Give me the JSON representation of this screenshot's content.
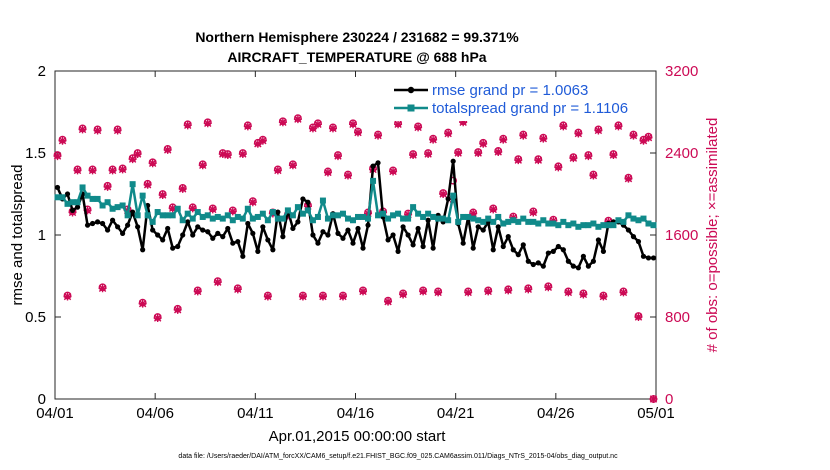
{
  "chart_data": {
    "type": "line",
    "title_line1": "Northern Hemisphere 230224 / 231682 = 99.371%",
    "title_line2": "AIRCRAFT_TEMPERATURE @ 688 hPa",
    "xlabel": "Apr.01,2015 00:00:00 start",
    "ylabel_left": "rmse and totalspread",
    "ylabel_right": "# of obs: o=possible; ×=assimilated",
    "footer": "data file: /Users/raeder/DAI/ATM_forcXX/CAM6_setup/f.e21.FHIST_BGC.f09_025.CAM6assim.011/Diags_NTrS_2015-04/obs_diag_output.nc",
    "xlim": [
      0,
      30
    ],
    "ylim_left": [
      0,
      2
    ],
    "ylim_right": [
      0,
      3200
    ],
    "x_ticks": [
      0,
      5,
      10,
      15,
      20,
      25,
      30
    ],
    "x_tick_labels": [
      "04/01",
      "04/06",
      "04/11",
      "04/16",
      "04/21",
      "04/26",
      "05/01"
    ],
    "y_ticks_left": [
      0,
      0.5,
      1,
      1.5,
      2
    ],
    "y_tick_labels_left": [
      "0",
      "0.5",
      "1",
      "1.5",
      "2"
    ],
    "y_ticks_right": [
      0,
      800,
      1600,
      2400,
      3200
    ],
    "y_tick_labels_right": [
      "0",
      "800",
      "1600",
      "2400",
      "3200"
    ],
    "series": [
      {
        "name": "rmse grand pr = 1.0063",
        "color": "#000000",
        "x": [
          0.125,
          0.375,
          0.625,
          0.875,
          1.125,
          1.375,
          1.625,
          1.875,
          2.125,
          2.375,
          2.625,
          2.875,
          3.125,
          3.375,
          3.625,
          3.875,
          4.125,
          4.375,
          4.625,
          4.875,
          5.125,
          5.375,
          5.625,
          5.875,
          6.125,
          6.375,
          6.625,
          6.875,
          7.125,
          7.375,
          7.625,
          7.875,
          8.125,
          8.375,
          8.625,
          8.875,
          9.125,
          9.375,
          9.625,
          9.875,
          10.125,
          10.375,
          10.625,
          10.875,
          11.125,
          11.375,
          11.625,
          11.875,
          12.125,
          12.375,
          12.625,
          12.875,
          13.125,
          13.375,
          13.625,
          13.875,
          14.125,
          14.375,
          14.625,
          14.875,
          15.125,
          15.375,
          15.625,
          15.875,
          16.125,
          16.375,
          16.625,
          16.875,
          17.125,
          17.375,
          17.625,
          17.875,
          18.125,
          18.375,
          18.625,
          18.875,
          19.125,
          19.375,
          19.625,
          19.875,
          20.125,
          20.375,
          20.625,
          20.875,
          21.125,
          21.375,
          21.625,
          21.875,
          22.125,
          22.375,
          22.625,
          22.875,
          23.125,
          23.375,
          23.625,
          23.875,
          24.125,
          24.375,
          24.625,
          24.875,
          25.125,
          25.375,
          25.625,
          25.875,
          26.125,
          26.375,
          26.625,
          26.875,
          27.125,
          27.375,
          27.625,
          27.875,
          28.125,
          28.375,
          28.625,
          28.875,
          29.125,
          29.375,
          29.625,
          29.875
        ],
        "values": [
          1.29,
          1.22,
          1.25,
          1.15,
          1.17,
          1.25,
          1.06,
          1.07,
          1.08,
          1.07,
          1.03,
          1.09,
          1.05,
          1.01,
          1.06,
          1.14,
          1.05,
          0.91,
          1.18,
          1.03,
          1.0,
          0.97,
          1.04,
          0.92,
          0.93,
          1.0,
          1.08,
          1.0,
          1.05,
          1.03,
          1.02,
          0.98,
          1.01,
          0.99,
          1.04,
          0.95,
          0.96,
          0.87,
          1.07,
          1.01,
          0.9,
          1.05,
          0.97,
          0.91,
          1.14,
          0.99,
          1.15,
          1.04,
          1.08,
          1.22,
          1.2,
          1.0,
          0.95,
          1.02,
          1.0,
          1.13,
          1.01,
          0.98,
          1.03,
          0.95,
          1.04,
          0.92,
          1.06,
          1.42,
          1.44,
          1.11,
          0.97,
          1.0,
          0.9,
          1.05,
          1.0,
          0.94,
          1.04,
          0.93,
          1.09,
          0.92,
          1.12,
          1.08,
          1.22,
          1.45,
          1.07,
          0.95,
          1.11,
          0.92,
          1.05,
          1.03,
          1.08,
          0.91,
          1.05,
          0.93,
          0.99,
          0.91,
          0.88,
          0.94,
          0.84,
          0.82,
          0.83,
          0.81,
          0.89,
          0.9,
          0.93,
          0.91,
          0.84,
          0.81,
          0.8,
          0.87,
          0.81,
          0.84,
          0.97,
          0.9,
          1.07,
          1.08,
          1.08,
          1.06,
          1.03,
          0.99,
          0.96,
          0.87,
          0.86,
          0.86
        ]
      },
      {
        "name": "totalspread grand pr = 1.1106",
        "color": "#108a8a",
        "x": [
          0.125,
          0.375,
          0.625,
          0.875,
          1.125,
          1.375,
          1.625,
          1.875,
          2.125,
          2.375,
          2.625,
          2.875,
          3.125,
          3.375,
          3.625,
          3.875,
          4.125,
          4.375,
          4.625,
          4.875,
          5.125,
          5.375,
          5.625,
          5.875,
          6.125,
          6.375,
          6.625,
          6.875,
          7.125,
          7.375,
          7.625,
          7.875,
          8.125,
          8.375,
          8.625,
          8.875,
          9.125,
          9.375,
          9.625,
          9.875,
          10.125,
          10.375,
          10.625,
          10.875,
          11.125,
          11.375,
          11.625,
          11.875,
          12.125,
          12.375,
          12.625,
          12.875,
          13.125,
          13.375,
          13.625,
          13.875,
          14.125,
          14.375,
          14.625,
          14.875,
          15.125,
          15.375,
          15.625,
          15.875,
          16.125,
          16.375,
          16.625,
          16.875,
          17.125,
          17.375,
          17.625,
          17.875,
          18.125,
          18.375,
          18.625,
          18.875,
          19.125,
          19.375,
          19.625,
          19.875,
          20.125,
          20.375,
          20.625,
          20.875,
          21.125,
          21.375,
          21.625,
          21.875,
          22.125,
          22.375,
          22.625,
          22.875,
          23.125,
          23.375,
          23.625,
          23.875,
          24.125,
          24.375,
          24.625,
          24.875,
          25.125,
          25.375,
          25.625,
          25.875,
          26.125,
          26.375,
          26.625,
          26.875,
          27.125,
          27.375,
          27.625,
          27.875,
          28.125,
          28.375,
          28.625,
          28.875,
          29.125,
          29.375,
          29.625,
          29.875
        ],
        "values": [
          1.23,
          1.23,
          1.19,
          1.2,
          1.2,
          1.29,
          1.24,
          1.22,
          1.22,
          1.18,
          1.2,
          1.16,
          1.17,
          1.18,
          1.12,
          1.31,
          1.12,
          1.24,
          1.12,
          1.08,
          1.14,
          1.12,
          1.12,
          1.12,
          1.16,
          1.09,
          1.13,
          1.1,
          1.14,
          1.11,
          1.12,
          1.1,
          1.11,
          1.1,
          1.12,
          1.09,
          1.11,
          1.1,
          1.16,
          1.1,
          1.11,
          1.13,
          1.09,
          1.14,
          1.1,
          1.1,
          1.15,
          1.12,
          1.17,
          1.13,
          1.15,
          1.09,
          1.11,
          1.21,
          1.1,
          1.12,
          1.12,
          1.13,
          1.1,
          1.09,
          1.11,
          1.11,
          1.1,
          1.33,
          1.12,
          1.13,
          1.1,
          1.12,
          1.13,
          1.1,
          1.1,
          1.17,
          1.13,
          1.11,
          1.13,
          1.11,
          1.1,
          1.1,
          1.09,
          1.24,
          1.08,
          1.11,
          1.11,
          1.1,
          1.09,
          1.08,
          1.1,
          1.08,
          1.11,
          1.07,
          1.08,
          1.09,
          1.08,
          1.1,
          1.08,
          1.08,
          1.07,
          1.09,
          1.07,
          1.07,
          1.06,
          1.08,
          1.06,
          1.07,
          1.05,
          1.06,
          1.06,
          1.07,
          1.05,
          1.06,
          1.06,
          1.06,
          1.09,
          1.08,
          1.12,
          1.1,
          1.09,
          1.1,
          1.07,
          1.06
        ]
      }
    ],
    "obs_points": {
      "name": "# of obs",
      "color": "#cc0a55",
      "x": [
        0.125,
        0.375,
        0.625,
        0.875,
        1.125,
        1.375,
        1.625,
        1.875,
        2.125,
        2.375,
        2.625,
        2.875,
        3.125,
        3.375,
        3.625,
        3.875,
        4.125,
        4.375,
        4.625,
        4.875,
        5.125,
        5.375,
        5.625,
        5.875,
        6.125,
        6.375,
        6.625,
        6.875,
        7.125,
        7.375,
        7.625,
        7.875,
        8.125,
        8.375,
        8.625,
        8.875,
        9.125,
        9.375,
        9.625,
        9.875,
        10.125,
        10.375,
        10.625,
        10.875,
        11.125,
        11.375,
        11.625,
        11.875,
        12.125,
        12.375,
        12.625,
        12.875,
        13.125,
        13.375,
        13.625,
        13.875,
        14.125,
        14.375,
        14.625,
        14.875,
        15.125,
        15.375,
        15.625,
        15.875,
        16.125,
        16.375,
        16.625,
        16.875,
        17.125,
        17.375,
        17.625,
        17.875,
        18.125,
        18.375,
        18.625,
        18.875,
        19.125,
        19.375,
        19.625,
        19.875,
        20.125,
        20.375,
        20.625,
        20.875,
        21.125,
        21.375,
        21.625,
        21.875,
        22.125,
        22.375,
        22.625,
        22.875,
        23.125,
        23.375,
        23.625,
        23.875,
        24.125,
        24.375,
        24.625,
        24.875,
        25.125,
        25.375,
        25.625,
        25.875,
        26.125,
        26.375,
        26.625,
        26.875,
        27.125,
        27.375,
        27.625,
        27.875,
        28.125,
        28.375,
        28.625,
        28.875,
        29.125,
        29.375,
        29.625,
        29.875
      ],
      "assimilated": [
        2370,
        2520,
        1000,
        1820,
        2230,
        2630,
        1840,
        2230,
        2620,
        1080,
        2070,
        2230,
        2620,
        2240,
        1840,
        2340,
        2390,
        930,
        2090,
        2300,
        790,
        1990,
        2430,
        1860,
        870,
        2050,
        2670,
        1860,
        1050,
        2280,
        2690,
        1850,
        1140,
        2390,
        2380,
        1830,
        1070,
        2390,
        2660,
        1920,
        2490,
        2520,
        1000,
        1810,
        2230,
        2700,
        1790,
        2280,
        2730,
        1000,
        1880,
        2640,
        2680,
        1000,
        2210,
        2640,
        2370,
        1000,
        2180,
        2680,
        2600,
        1050,
        1810,
        2240,
        2570,
        1820,
        950,
        2220,
        2680,
        1020,
        1800,
        2380,
        2650,
        1050,
        2390,
        2530,
        1040,
        2000,
        2590,
        1950,
        2400,
        2700,
        1040,
        1810,
        2400,
        2490,
        1050,
        1850,
        2410,
        2530,
        1060,
        1770,
        2330,
        2570,
        1070,
        1820,
        2330,
        2540,
        1090,
        1740,
        2260,
        2660,
        1040,
        2350,
        2590,
        1020,
        2370,
        2180,
        2620,
        1000,
        1730,
        2380,
        2660,
        1040,
        2150,
        2570,
        800,
        2520,
        2550,
        0
      ],
      "possible": [
        2380,
        2530,
        1010,
        1830,
        2240,
        2640,
        1850,
        2240,
        2630,
        1090,
        2080,
        2240,
        2630,
        2250,
        1850,
        2350,
        2400,
        940,
        2100,
        2310,
        800,
        2000,
        2440,
        1870,
        880,
        2060,
        2680,
        1870,
        1060,
        2290,
        2700,
        1860,
        1150,
        2400,
        2390,
        1840,
        1080,
        2400,
        2670,
        1930,
        2500,
        2530,
        1010,
        1820,
        2240,
        2710,
        1800,
        2290,
        2740,
        1010,
        1890,
        2650,
        2690,
        1010,
        2220,
        2650,
        2380,
        1010,
        2190,
        2690,
        2610,
        1060,
        1820,
        2250,
        2580,
        1830,
        960,
        2230,
        2690,
        1030,
        1810,
        2390,
        2660,
        1060,
        2400,
        2540,
        1050,
        2010,
        2600,
        2130,
        2410,
        2710,
        1050,
        1820,
        2410,
        2500,
        1060,
        1860,
        2420,
        2540,
        1070,
        1780,
        2340,
        2580,
        1080,
        1830,
        2340,
        2550,
        1100,
        1750,
        2270,
        2670,
        1050,
        2360,
        2600,
        1030,
        2380,
        2190,
        2630,
        1010,
        1740,
        2390,
        2670,
        1050,
        2160,
        2580,
        810,
        2530,
        2560,
        0
      ]
    },
    "legend_location": "top-right",
    "grid": false
  }
}
